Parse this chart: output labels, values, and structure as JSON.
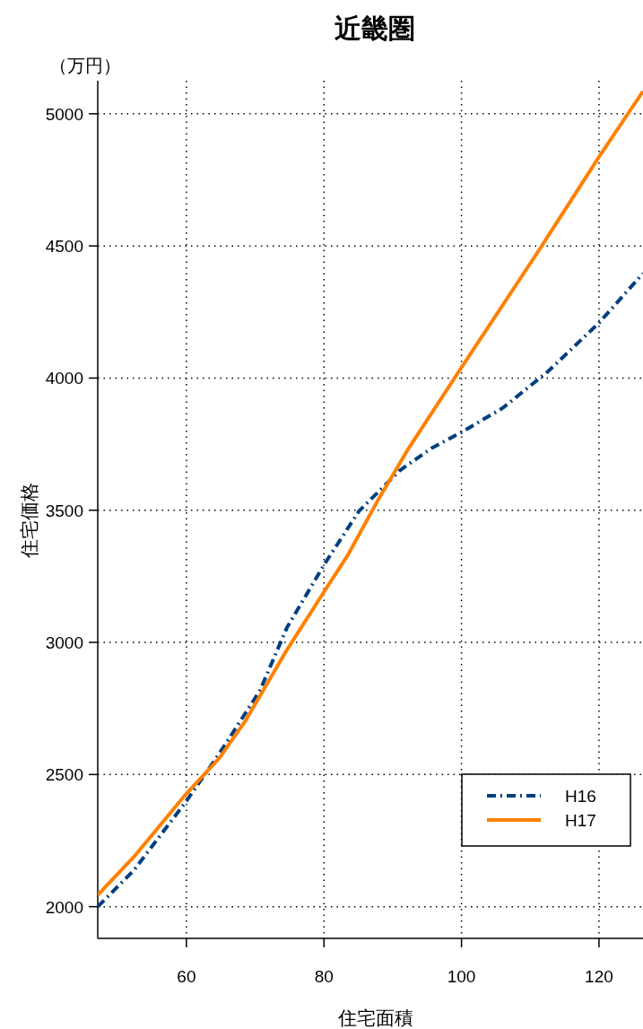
{
  "chart_data": {
    "type": "line",
    "title": "近畿圏",
    "xlabel": "住宅面積",
    "ylabel": "住宅価格",
    "annotations": [
      "（万円）"
    ],
    "xlim": [
      47.1,
      126.4
    ],
    "xticks": [
      60,
      80,
      100,
      120
    ],
    "ylim": [
      1880,
      5125
    ],
    "yticks": [
      2000,
      2500,
      3000,
      3500,
      4000,
      4500,
      5000
    ],
    "grid": true,
    "legend": "bottom right",
    "marker": "none",
    "series": [
      {
        "name": "H16",
        "color": "#003f7f",
        "line_style": "dashdot",
        "x": [
          47.1,
          52.4,
          60,
          64.8,
          70.7,
          74.6,
          80,
          85.1,
          88.4,
          91,
          95.6,
          100,
          106,
          112.5,
          120,
          126.4
        ],
        "values": [
          2000,
          2139,
          2400,
          2580,
          2818,
          3055,
          3293,
          3497,
          3582,
          3650,
          3734,
          3795,
          3887,
          4023,
          4209,
          4396
        ]
      },
      {
        "name": "H17",
        "color": "#ff8000",
        "line_style": "solid",
        "x": [
          47.1,
          52.4,
          60,
          64.8,
          68.5,
          74.6,
          80,
          83.4,
          87.7,
          92.3,
          100,
          111.2,
          120,
          126.4
        ],
        "values": [
          2044,
          2190,
          2428,
          2563,
          2700,
          2971,
          3191,
          3327,
          3531,
          3734,
          4040,
          4481,
          4837,
          5085
        ]
      }
    ]
  }
}
